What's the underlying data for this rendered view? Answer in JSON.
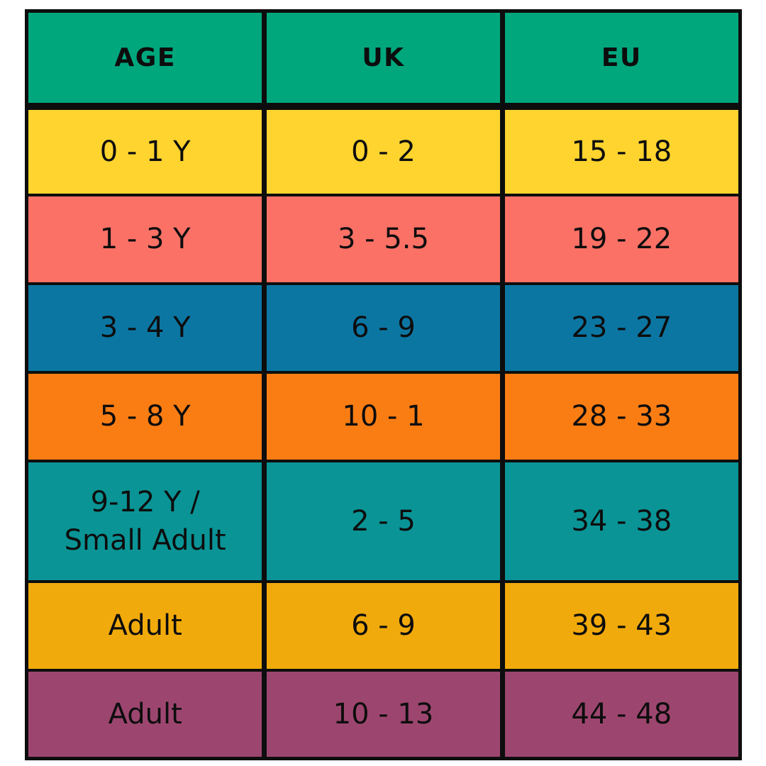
{
  "chart_data": {
    "type": "table",
    "columns": [
      "AGE",
      "UK",
      "EU"
    ],
    "rows": [
      {
        "age": "0 - 1 Y",
        "uk": "0 - 2",
        "eu": "15 - 18",
        "bg": "#FFD42E"
      },
      {
        "age": "1 - 3 Y",
        "uk": "3 - 5.5",
        "eu": "19 - 22",
        "bg": "#FB7166"
      },
      {
        "age": "3 - 4 Y",
        "uk": "6 - 9",
        "eu": "23 - 27",
        "bg": "#0C76A3"
      },
      {
        "age": "5 - 8 Y",
        "uk": "10 - 1",
        "eu": "28 - 33",
        "bg": "#FA7D14"
      },
      {
        "age": "9-12 Y /\nSmall Adult",
        "uk": "2 - 5",
        "eu": "34 - 38",
        "bg": "#0A9496"
      },
      {
        "age": "Adult",
        "uk": "6 - 9",
        "eu": "39 - 43",
        "bg": "#F1AA0B"
      },
      {
        "age": "Adult",
        "uk": "10 - 13",
        "eu": "44 - 48",
        "bg": "#9C466F"
      }
    ],
    "header_bg": "#00A77D",
    "border_color": "#0d0d0d",
    "text_color": "#0d0d0d",
    "background": "#ffffff",
    "legend_position": "none",
    "grid": "on"
  }
}
